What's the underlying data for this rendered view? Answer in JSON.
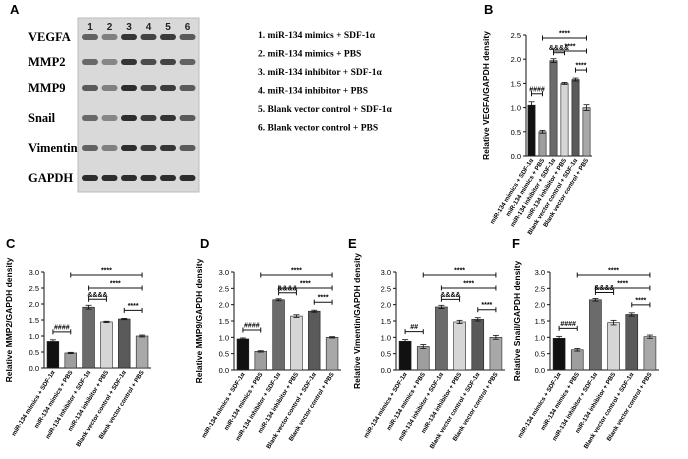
{
  "figure": {
    "panel_labels": [
      "A",
      "B",
      "C",
      "D",
      "E",
      "F"
    ],
    "legend_items": [
      "1. miR-134 mimics + SDF-1α",
      "2. miR-134 mimics + PBS",
      "3. miR-134 inhibitor + SDF-1α",
      "4. miR-134 inhibitor + PBS",
      "5. Blank vector control + SDF-1α",
      "6. Blank vector control + PBS"
    ],
    "blot": {
      "lanes": [
        "1",
        "2",
        "3",
        "4",
        "5",
        "6"
      ],
      "proteins": [
        "VEGFA",
        "MMP2",
        "MMP9",
        "Snail",
        "Vimentin",
        "GAPDH"
      ]
    },
    "colors": {
      "bars": [
        "#111111",
        "#9e9e9e",
        "#6b6b6b",
        "#d6d6d6",
        "#5a5a5a",
        "#a8a8a8"
      ],
      "text": "#111111"
    }
  },
  "chart_data": [
    {
      "panel": "B",
      "type": "bar",
      "title": "",
      "xlabel": "",
      "ylabel": "Relative VEGFA/GAPDH density",
      "categories": [
        "miR-134 mimics + SDF-1α",
        "miR-134 mimics + PBS",
        "miR-134 inhibitor + SDF-1α",
        "miR-134 inhibitor + PBS",
        "Blank vector control + SDF-1α",
        "Blank vector control + PBS"
      ],
      "values": [
        1.05,
        0.5,
        1.97,
        1.5,
        1.58,
        1.0
      ],
      "errors": [
        0.07,
        0.03,
        0.04,
        0.02,
        0.03,
        0.06
      ],
      "ylim": [
        0,
        2.5
      ],
      "yticks": [
        0.0,
        0.5,
        1.0,
        1.5,
        2.0,
        2.5
      ],
      "tick_labels": [
        "0.0",
        "0.5",
        "1.0",
        "1.5",
        "2.0",
        "2.5"
      ],
      "annotations": [
        {
          "from": 0,
          "to": 1,
          "label": "####"
        },
        {
          "from": 2,
          "to": 3,
          "label": "&&&&"
        },
        {
          "from": 4,
          "to": 5,
          "label": "****"
        },
        {
          "from": 2,
          "to": 5,
          "label": "****"
        },
        {
          "from": 1,
          "to": 5,
          "label": "****"
        }
      ]
    },
    {
      "panel": "C",
      "type": "bar",
      "title": "",
      "xlabel": "",
      "ylabel": "Relative MMP2/GAPDH density",
      "categories": [
        "miR-134 mimics + SDF-1α",
        "miR-134 mimics + PBS",
        "miR-134 inhibitor + SDF-1α",
        "miR-134 inhibitor + PBS",
        "Blank vector control + SDF-1α",
        "Blank vector control + PBS"
      ],
      "values": [
        0.83,
        0.47,
        1.9,
        1.44,
        1.53,
        1.0
      ],
      "errors": [
        0.05,
        0.02,
        0.06,
        0.02,
        0.02,
        0.03
      ],
      "ylim": [
        0,
        3.0
      ],
      "yticks": [
        0.0,
        0.5,
        1.0,
        1.5,
        2.0,
        2.5,
        3.0
      ],
      "tick_labels": [
        "0.0",
        "0.5",
        "1.0",
        "1.5",
        "2.0",
        "2.5",
        "3.0"
      ],
      "annotations": [
        {
          "from": 0,
          "to": 1,
          "label": "####"
        },
        {
          "from": 2,
          "to": 3,
          "label": "&&&&"
        },
        {
          "from": 4,
          "to": 5,
          "label": "****"
        },
        {
          "from": 2,
          "to": 5,
          "label": "****"
        },
        {
          "from": 1,
          "to": 5,
          "label": "****"
        }
      ]
    },
    {
      "panel": "D",
      "type": "bar",
      "title": "",
      "xlabel": "",
      "ylabel": "Relative MMP9/GAPDH density",
      "categories": [
        "miR-134 mimics + SDF-1α",
        "miR-134 mimics + PBS",
        "miR-134 inhibitor + SDF-1α",
        "miR-134 inhibitor + PBS",
        "Blank vector control + SDF-1α",
        "Blank vector control + PBS"
      ],
      "values": [
        0.95,
        0.57,
        2.15,
        1.65,
        1.8,
        1.0
      ],
      "errors": [
        0.03,
        0.02,
        0.03,
        0.04,
        0.03,
        0.02
      ],
      "ylim": [
        0,
        3.0
      ],
      "yticks": [
        0.0,
        0.5,
        1.0,
        1.5,
        2.0,
        2.5,
        3.0
      ],
      "tick_labels": [
        "0.0",
        "0.5",
        "1.0",
        "1.5",
        "2.0",
        "2.5",
        "3.0"
      ],
      "annotations": [
        {
          "from": 0,
          "to": 1,
          "label": "####"
        },
        {
          "from": 2,
          "to": 3,
          "label": "&&&&"
        },
        {
          "from": 4,
          "to": 5,
          "label": "****"
        },
        {
          "from": 2,
          "to": 5,
          "label": "****"
        },
        {
          "from": 1,
          "to": 5,
          "label": "****"
        }
      ]
    },
    {
      "panel": "E",
      "type": "bar",
      "title": "",
      "xlabel": "",
      "ylabel": "Relative Vimentin/GAPDH density",
      "categories": [
        "miR-134 mimics + SDF-1α",
        "miR-134 mimics + PBS",
        "miR-134 inhibitor + SDF-1α",
        "miR-134 inhibitor + PBS",
        "Blank vector control + SDF-1α",
        "Blank vector control + PBS"
      ],
      "values": [
        0.88,
        0.72,
        1.93,
        1.47,
        1.55,
        1.0
      ],
      "errors": [
        0.05,
        0.06,
        0.05,
        0.05,
        0.05,
        0.06
      ],
      "ylim": [
        0,
        3.0
      ],
      "yticks": [
        0.0,
        0.5,
        1.0,
        1.5,
        2.0,
        2.5,
        3.0
      ],
      "tick_labels": [
        "0.0",
        "0.5",
        "1.0",
        "1.5",
        "2.0",
        "2.5",
        "3.0"
      ],
      "annotations": [
        {
          "from": 0,
          "to": 1,
          "label": "##"
        },
        {
          "from": 2,
          "to": 3,
          "label": "&&&&"
        },
        {
          "from": 4,
          "to": 5,
          "label": "****"
        },
        {
          "from": 2,
          "to": 5,
          "label": "****"
        },
        {
          "from": 1,
          "to": 5,
          "label": "****"
        }
      ]
    },
    {
      "panel": "F",
      "type": "bar",
      "title": "",
      "xlabel": "",
      "ylabel": "Relative Snail/GAPDH density",
      "categories": [
        "miR-134 mimics + SDF-1α",
        "miR-134 mimics + PBS",
        "miR-134 inhibitor + SDF-1α",
        "miR-134 inhibitor + PBS",
        "Blank vector control + SDF-1α",
        "Blank vector control + PBS"
      ],
      "values": [
        0.97,
        0.62,
        2.15,
        1.45,
        1.7,
        1.02
      ],
      "errors": [
        0.06,
        0.04,
        0.04,
        0.07,
        0.05,
        0.05
      ],
      "ylim": [
        0,
        3.0
      ],
      "yticks": [
        0.0,
        0.5,
        1.0,
        1.5,
        2.0,
        2.5,
        3.0
      ],
      "tick_labels": [
        "0.0",
        "0.5",
        "1.0",
        "1.5",
        "2.0",
        "2.5",
        "3.0"
      ],
      "annotations": [
        {
          "from": 0,
          "to": 1,
          "label": "####"
        },
        {
          "from": 2,
          "to": 3,
          "label": "&&&&"
        },
        {
          "from": 4,
          "to": 5,
          "label": "****"
        },
        {
          "from": 2,
          "to": 5,
          "label": "****"
        },
        {
          "from": 1,
          "to": 5,
          "label": "****"
        }
      ]
    }
  ]
}
